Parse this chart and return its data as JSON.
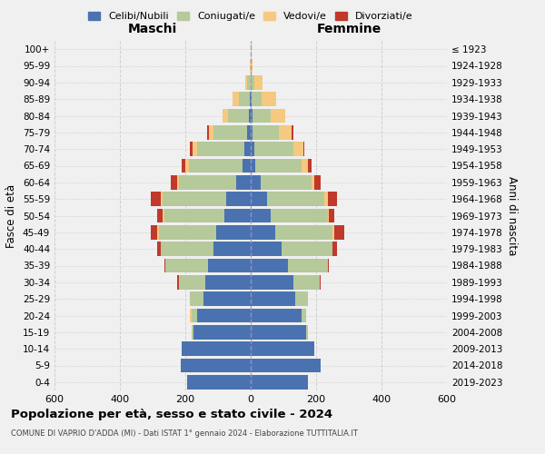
{
  "age_groups": [
    "0-4",
    "5-9",
    "10-14",
    "15-19",
    "20-24",
    "25-29",
    "30-34",
    "35-39",
    "40-44",
    "45-49",
    "50-54",
    "55-59",
    "60-64",
    "65-69",
    "70-74",
    "75-79",
    "80-84",
    "85-89",
    "90-94",
    "95-99",
    "100+"
  ],
  "birth_years": [
    "2019-2023",
    "2014-2018",
    "2009-2013",
    "2004-2008",
    "1999-2003",
    "1994-1998",
    "1989-1993",
    "1984-1988",
    "1979-1983",
    "1974-1978",
    "1969-1973",
    "1964-1968",
    "1959-1963",
    "1954-1958",
    "1949-1953",
    "1944-1948",
    "1939-1943",
    "1934-1938",
    "1929-1933",
    "1924-1928",
    "≤ 1923"
  ],
  "colors": {
    "celibe": "#4a72b0",
    "coniugato": "#b5c99a",
    "vedovo": "#f5c97f",
    "divorziato": "#c0392b"
  },
  "males": {
    "celibe": [
      195,
      215,
      210,
      175,
      165,
      145,
      140,
      130,
      115,
      105,
      80,
      75,
      45,
      25,
      20,
      10,
      5,
      2,
      0,
      0,
      0
    ],
    "coniugato": [
      0,
      0,
      0,
      5,
      15,
      40,
      80,
      130,
      160,
      175,
      185,
      195,
      175,
      165,
      145,
      105,
      65,
      35,
      10,
      0,
      0
    ],
    "vedovo": [
      0,
      0,
      0,
      0,
      5,
      0,
      0,
      0,
      0,
      5,
      5,
      5,
      5,
      10,
      12,
      12,
      15,
      18,
      8,
      2,
      0
    ],
    "divorziato": [
      0,
      0,
      0,
      0,
      0,
      0,
      5,
      5,
      10,
      20,
      15,
      30,
      20,
      10,
      10,
      5,
      0,
      0,
      0,
      0,
      0
    ]
  },
  "females": {
    "nubile": [
      175,
      215,
      195,
      170,
      155,
      135,
      130,
      115,
      95,
      75,
      60,
      50,
      30,
      15,
      10,
      5,
      5,
      2,
      0,
      0,
      0
    ],
    "coniugata": [
      0,
      0,
      0,
      5,
      15,
      40,
      80,
      120,
      155,
      175,
      175,
      175,
      155,
      140,
      120,
      80,
      55,
      30,
      10,
      0,
      0
    ],
    "vedova": [
      0,
      0,
      0,
      0,
      0,
      0,
      0,
      0,
      0,
      5,
      5,
      10,
      10,
      20,
      30,
      40,
      45,
      45,
      25,
      5,
      2
    ],
    "divorziata": [
      0,
      0,
      0,
      0,
      0,
      0,
      5,
      5,
      15,
      30,
      15,
      30,
      20,
      10,
      5,
      5,
      0,
      0,
      0,
      0,
      0
    ]
  },
  "xlim": 600,
  "title": "Popolazione per età, sesso e stato civile - 2024",
  "subtitle": "COMUNE DI VAPRIO D'ADDA (MI) - Dati ISTAT 1° gennaio 2024 - Elaborazione TUTTITALIA.IT",
  "xlabel_left": "Maschi",
  "xlabel_right": "Femmine",
  "ylabel_left": "Fasce di età",
  "ylabel_right": "Anni di nascita",
  "bg_color": "#f0f0f0",
  "grid_color": "#cccccc"
}
